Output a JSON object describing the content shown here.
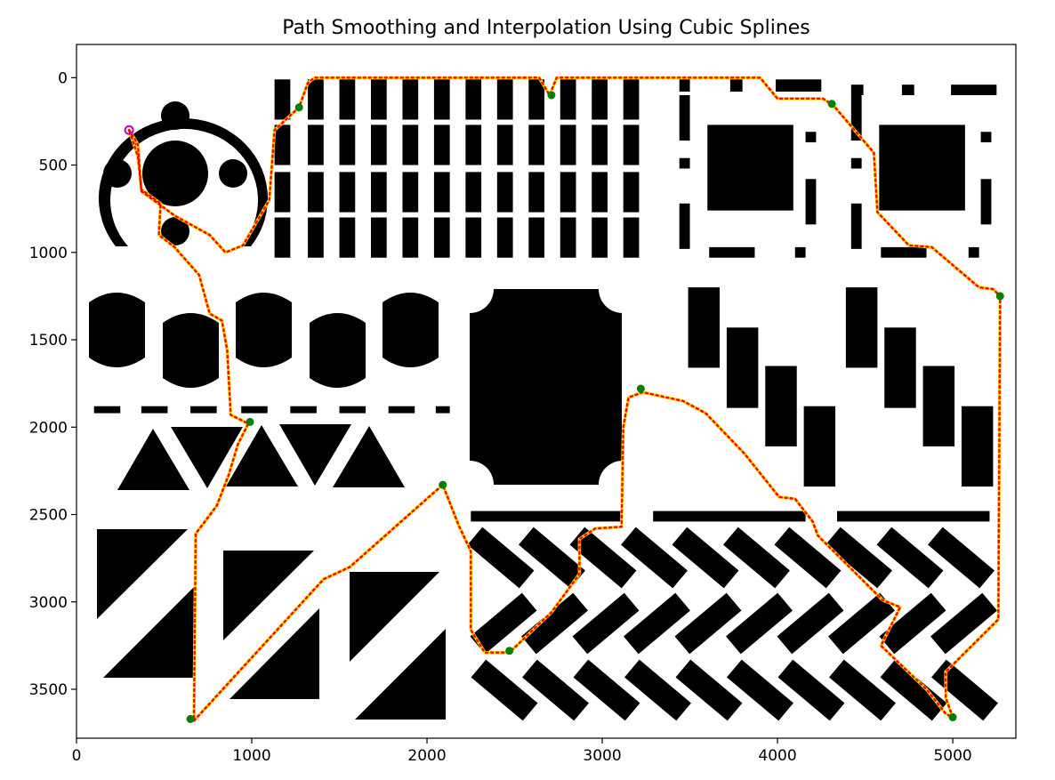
{
  "chart_data": {
    "type": "line",
    "title": "Path Smoothing and Interpolation Using Cubic Splines",
    "xlabel": "",
    "ylabel": "",
    "xlim": [
      0,
      5360
    ],
    "ylim": [
      3780,
      -190
    ],
    "y_inverted": true,
    "grid": false,
    "x_ticks": [
      0,
      1000,
      2000,
      3000,
      4000,
      5000
    ],
    "y_ticks": [
      0,
      500,
      1000,
      1500,
      2000,
      2500,
      3000,
      3500
    ],
    "series": [
      {
        "role": "raw-path",
        "color": "#ff0000",
        "style": "dotted",
        "points": [
          [
            300,
            300
          ],
          [
            350,
            380
          ],
          [
            370,
            650
          ],
          [
            480,
            730
          ],
          [
            560,
            790
          ],
          [
            760,
            900
          ],
          [
            850,
            1000
          ],
          [
            950,
            960
          ],
          [
            1100,
            700
          ],
          [
            1130,
            300
          ],
          [
            1270,
            170
          ],
          [
            1320,
            30
          ],
          [
            1360,
            0
          ],
          [
            2640,
            0
          ],
          [
            2700,
            100
          ],
          [
            2740,
            0
          ],
          [
            3900,
            0
          ],
          [
            4000,
            120
          ],
          [
            4260,
            120
          ],
          [
            4320,
            160
          ],
          [
            4550,
            430
          ],
          [
            4570,
            770
          ],
          [
            4750,
            960
          ],
          [
            4880,
            970
          ],
          [
            5150,
            1200
          ],
          [
            5230,
            1210
          ],
          [
            5270,
            1250
          ],
          [
            5260,
            3100
          ],
          [
            4960,
            3400
          ],
          [
            4960,
            3550
          ],
          [
            5000,
            3660
          ],
          [
            4960,
            3640
          ],
          [
            4850,
            3500
          ],
          [
            4590,
            3250
          ],
          [
            4700,
            3030
          ],
          [
            4600,
            2990
          ],
          [
            4230,
            2620
          ],
          [
            4200,
            2540
          ],
          [
            4100,
            2410
          ],
          [
            4010,
            2400
          ],
          [
            3810,
            2150
          ],
          [
            3590,
            1920
          ],
          [
            3460,
            1850
          ],
          [
            3230,
            1800
          ],
          [
            3150,
            1830
          ],
          [
            3120,
            2000
          ],
          [
            3110,
            2570
          ],
          [
            2960,
            2580
          ],
          [
            2870,
            2640
          ],
          [
            2870,
            2840
          ],
          [
            2710,
            3060
          ],
          [
            2470,
            3290
          ],
          [
            2330,
            3290
          ],
          [
            2250,
            3160
          ],
          [
            2250,
            2710
          ],
          [
            2180,
            2560
          ],
          [
            2090,
            2330
          ],
          [
            2010,
            2400
          ],
          [
            1560,
            2800
          ],
          [
            1410,
            2870
          ],
          [
            670,
            3680
          ],
          [
            680,
            2610
          ],
          [
            800,
            2450
          ],
          [
            870,
            2270
          ],
          [
            920,
            2100
          ],
          [
            980,
            1980
          ],
          [
            880,
            1930
          ],
          [
            860,
            1560
          ],
          [
            830,
            1390
          ],
          [
            760,
            1350
          ],
          [
            700,
            1130
          ],
          [
            560,
            970
          ],
          [
            470,
            900
          ],
          [
            480,
            720
          ],
          [
            370,
            640
          ],
          [
            350,
            450
          ],
          [
            300,
            300
          ]
        ]
      },
      {
        "role": "smoothed-path",
        "color": "#ffd700",
        "style": "solid",
        "points": [
          [
            300,
            300
          ],
          [
            350,
            380
          ],
          [
            370,
            650
          ],
          [
            480,
            730
          ],
          [
            560,
            790
          ],
          [
            760,
            900
          ],
          [
            850,
            1000
          ],
          [
            950,
            960
          ],
          [
            1100,
            700
          ],
          [
            1130,
            300
          ],
          [
            1270,
            170
          ],
          [
            1320,
            30
          ],
          [
            1360,
            0
          ],
          [
            2640,
            0
          ],
          [
            2700,
            100
          ],
          [
            2740,
            0
          ],
          [
            3900,
            0
          ],
          [
            4000,
            120
          ],
          [
            4260,
            120
          ],
          [
            4320,
            160
          ],
          [
            4550,
            430
          ],
          [
            4570,
            770
          ],
          [
            4750,
            960
          ],
          [
            4880,
            970
          ],
          [
            5150,
            1200
          ],
          [
            5230,
            1210
          ],
          [
            5270,
            1250
          ],
          [
            5260,
            3100
          ],
          [
            4960,
            3400
          ],
          [
            4960,
            3550
          ],
          [
            5000,
            3660
          ],
          [
            4960,
            3640
          ],
          [
            4850,
            3500
          ],
          [
            4590,
            3250
          ],
          [
            4700,
            3030
          ],
          [
            4600,
            2990
          ],
          [
            4230,
            2620
          ],
          [
            4200,
            2540
          ],
          [
            4100,
            2410
          ],
          [
            4010,
            2400
          ],
          [
            3810,
            2150
          ],
          [
            3590,
            1920
          ],
          [
            3460,
            1850
          ],
          [
            3230,
            1800
          ],
          [
            3150,
            1830
          ],
          [
            3120,
            2000
          ],
          [
            3110,
            2570
          ],
          [
            2960,
            2580
          ],
          [
            2870,
            2640
          ],
          [
            2870,
            2840
          ],
          [
            2710,
            3060
          ],
          [
            2470,
            3290
          ],
          [
            2330,
            3290
          ],
          [
            2250,
            3160
          ],
          [
            2250,
            2710
          ],
          [
            2180,
            2560
          ],
          [
            2090,
            2330
          ],
          [
            2010,
            2400
          ],
          [
            1560,
            2800
          ],
          [
            1410,
            2870
          ],
          [
            670,
            3680
          ],
          [
            680,
            2610
          ],
          [
            800,
            2450
          ],
          [
            870,
            2270
          ],
          [
            920,
            2100
          ],
          [
            980,
            1980
          ],
          [
            880,
            1930
          ],
          [
            860,
            1560
          ],
          [
            830,
            1390
          ],
          [
            760,
            1350
          ],
          [
            700,
            1130
          ],
          [
            560,
            970
          ],
          [
            470,
            900
          ],
          [
            480,
            720
          ],
          [
            370,
            640
          ],
          [
            350,
            450
          ],
          [
            300,
            300
          ]
        ]
      },
      {
        "role": "waypoints",
        "color": "#008000",
        "points": [
          [
            1270,
            170
          ],
          [
            2710,
            100
          ],
          [
            4310,
            150
          ],
          [
            5270,
            1250
          ],
          [
            3220,
            1780
          ],
          [
            990,
            1970
          ],
          [
            2090,
            2330
          ],
          [
            2470,
            3280
          ],
          [
            650,
            3670
          ],
          [
            5000,
            3660
          ]
        ]
      },
      {
        "role": "start",
        "color": "#bf00bf",
        "points": [
          [
            300,
            300
          ]
        ]
      }
    ],
    "background_obstacles": {
      "color": "#000000",
      "rects": [
        [
          1130,
          10,
          90,
          230
        ],
        [
          1320,
          10,
          90,
          230
        ],
        [
          1500,
          10,
          90,
          230
        ],
        [
          1680,
          10,
          90,
          230
        ],
        [
          1860,
          10,
          90,
          230
        ],
        [
          2040,
          10,
          90,
          230
        ],
        [
          2220,
          10,
          90,
          230
        ],
        [
          2400,
          10,
          90,
          230
        ],
        [
          2580,
          10,
          90,
          230
        ],
        [
          2760,
          10,
          90,
          230
        ],
        [
          2940,
          10,
          90,
          230
        ],
        [
          3120,
          10,
          90,
          230
        ],
        [
          1130,
          270,
          90,
          230
        ],
        [
          1320,
          270,
          90,
          230
        ],
        [
          1500,
          270,
          90,
          230
        ],
        [
          1680,
          270,
          90,
          230
        ],
        [
          1860,
          270,
          90,
          230
        ],
        [
          2040,
          270,
          90,
          230
        ],
        [
          2220,
          270,
          90,
          230
        ],
        [
          2400,
          270,
          90,
          230
        ],
        [
          2580,
          270,
          90,
          230
        ],
        [
          2760,
          270,
          90,
          230
        ],
        [
          2940,
          270,
          90,
          230
        ],
        [
          3120,
          270,
          90,
          230
        ],
        [
          1130,
          540,
          90,
          230
        ],
        [
          1320,
          540,
          90,
          230
        ],
        [
          1500,
          540,
          90,
          230
        ],
        [
          1680,
          540,
          90,
          230
        ],
        [
          1860,
          540,
          90,
          230
        ],
        [
          2040,
          540,
          90,
          230
        ],
        [
          2220,
          540,
          90,
          230
        ],
        [
          2400,
          540,
          90,
          230
        ],
        [
          2580,
          540,
          90,
          230
        ],
        [
          2760,
          540,
          90,
          230
        ],
        [
          2940,
          540,
          90,
          230
        ],
        [
          3120,
          540,
          90,
          230
        ],
        [
          1130,
          800,
          90,
          230
        ],
        [
          1320,
          800,
          90,
          230
        ],
        [
          1500,
          800,
          90,
          230
        ],
        [
          1680,
          800,
          90,
          230
        ],
        [
          1860,
          800,
          90,
          230
        ],
        [
          2040,
          800,
          90,
          230
        ],
        [
          2220,
          800,
          90,
          230
        ],
        [
          2400,
          800,
          90,
          230
        ],
        [
          2580,
          800,
          90,
          230
        ],
        [
          2760,
          800,
          90,
          230
        ],
        [
          2940,
          800,
          90,
          230
        ],
        [
          3120,
          800,
          90,
          230
        ],
        [
          3440,
          10,
          60,
          70
        ],
        [
          3730,
          10,
          70,
          70
        ],
        [
          3990,
          10,
          260,
          70
        ],
        [
          3440,
          100,
          60,
          260
        ],
        [
          3440,
          460,
          60,
          60
        ],
        [
          3440,
          720,
          60,
          260
        ],
        [
          3610,
          970,
          260,
          60
        ],
        [
          4100,
          970,
          60,
          60
        ],
        [
          4160,
          310,
          60,
          60
        ],
        [
          4160,
          580,
          60,
          260
        ],
        [
          3600,
          270,
          490,
          490
        ],
        [
          4420,
          40,
          70,
          60
        ],
        [
          4710,
          40,
          70,
          60
        ],
        [
          4990,
          40,
          260,
          60
        ],
        [
          4420,
          100,
          60,
          260
        ],
        [
          4420,
          460,
          60,
          60
        ],
        [
          4420,
          720,
          60,
          260
        ],
        [
          4590,
          970,
          260,
          60
        ],
        [
          5090,
          970,
          60,
          60
        ],
        [
          5160,
          310,
          60,
          60
        ],
        [
          5160,
          580,
          60,
          260
        ],
        [
          4580,
          270,
          490,
          490
        ],
        [
          100,
          1880,
          150,
          40
        ],
        [
          370,
          1880,
          150,
          40
        ],
        [
          650,
          1880,
          150,
          40
        ],
        [
          940,
          1880,
          150,
          40
        ],
        [
          1220,
          1880,
          150,
          40
        ],
        [
          1500,
          1880,
          150,
          40
        ],
        [
          1780,
          1880,
          150,
          40
        ],
        [
          2050,
          1880,
          80,
          40
        ],
        [
          2250,
          2480,
          860,
          60
        ],
        [
          3290,
          2480,
          870,
          60
        ],
        [
          4340,
          2480,
          870,
          60
        ],
        [
          3490,
          1200,
          180,
          460
        ],
        [
          3710,
          1430,
          180,
          460
        ],
        [
          3930,
          1650,
          180,
          460
        ],
        [
          4150,
          1880,
          180,
          460
        ],
        [
          4390,
          1200,
          180,
          460
        ],
        [
          4610,
          1430,
          180,
          460
        ],
        [
          4830,
          1650,
          180,
          460
        ],
        [
          5050,
          1880,
          180,
          460
        ]
      ]
    }
  }
}
